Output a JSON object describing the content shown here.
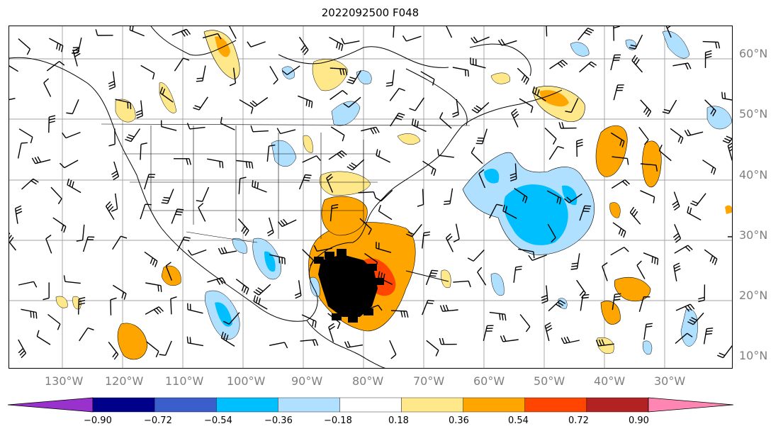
{
  "title": "2022092500 F048",
  "latitude_labels": [
    "60°N",
    "50°N",
    "40°N",
    "30°N",
    "20°N",
    "10°N"
  ],
  "longitude_labels": [
    "130°W",
    "120°W",
    "110°W",
    "100°W",
    "90°W",
    "80°W",
    "70°W",
    "60°W",
    "50°W",
    "40°W",
    "30°W"
  ],
  "colorbar": {
    "tick_labels": [
      "−0.90",
      "−0.72",
      "−0.54",
      "−0.36",
      "−0.18",
      "0.18",
      "0.36",
      "0.54",
      "0.72",
      "0.90"
    ],
    "colors": [
      "#9932cc",
      "#00008b",
      "#3a5fcd",
      "#00bfff",
      "#b0e0ff",
      "#ffffff",
      "#ffe88a",
      "#ffa500",
      "#ff4500",
      "#b22222",
      "#ff85b3"
    ]
  },
  "map_features": {
    "projection": "lat-lon",
    "lon_range": [
      "140°W",
      "20°W"
    ],
    "lat_range": [
      "8°N",
      "65°N"
    ],
    "overlay": "wind barbs",
    "marker": "tropical cyclone symbol (black) over Gulf of Mexico / Cuba",
    "positive_maxima_regions": [
      "Gulf of Mexico / Cuba",
      "Southeastern US",
      "North Atlantic 40°W",
      "Labrador Sea",
      "Western Canada"
    ],
    "negative_minima_regions": [
      "Central Atlantic 50°W-65°W",
      "Northern Mexico",
      "Eastern Pacific",
      "Great Lakes"
    ]
  }
}
